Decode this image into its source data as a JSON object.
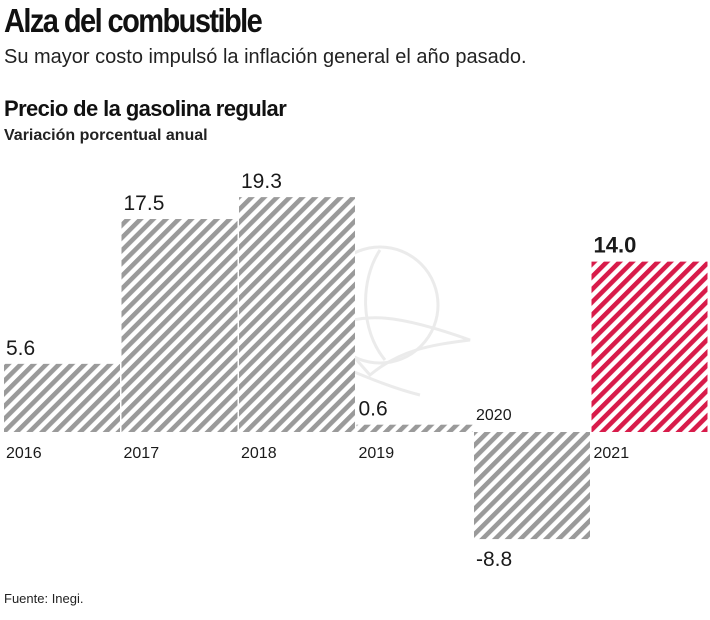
{
  "header": {
    "title": "Alza del combustible",
    "subtitle": "Su mayor costo impulsó la inflación general el año pasado."
  },
  "chart_data": {
    "type": "bar",
    "title": "Precio de la gasolina regular",
    "subtitle": "Variación porcentual anual",
    "categories": [
      "2016",
      "2017",
      "2018",
      "2019",
      "2020",
      "2021"
    ],
    "values": [
      5.6,
      17.5,
      19.3,
      0.6,
      -8.8,
      14.0
    ],
    "value_labels": [
      "5.6",
      "17.5",
      "19.3",
      "0.6",
      "-8.8",
      "14.0"
    ],
    "highlight_index": 5,
    "colors": {
      "default": "#9a9a9a",
      "highlight": "#d81b4a"
    },
    "xlabel": "",
    "ylabel": "",
    "ylim": [
      -8.8,
      19.3
    ],
    "grid": false,
    "legend": "none"
  },
  "footer": {
    "source": "Fuente: Inegi."
  }
}
